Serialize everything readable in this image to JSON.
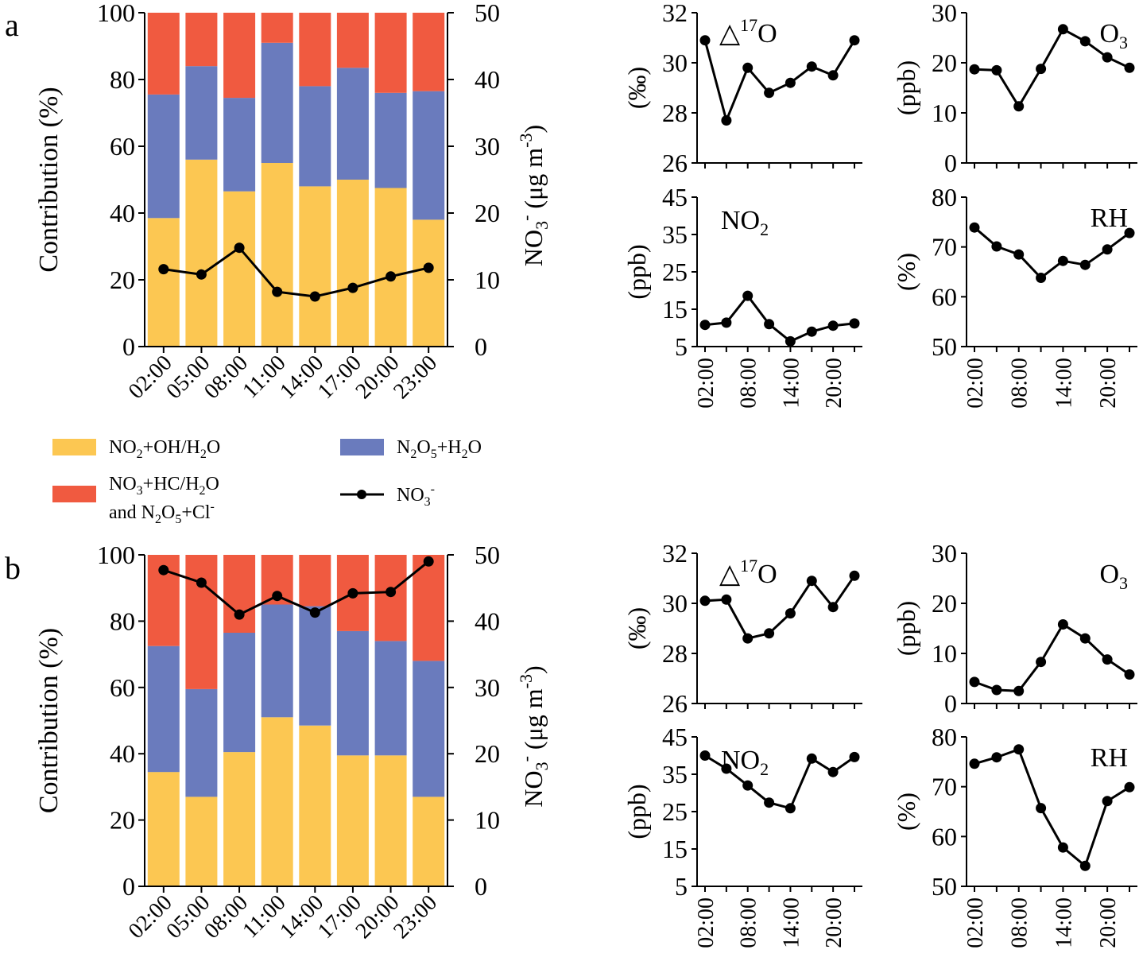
{
  "colors": {
    "oh": "#FCC752",
    "n2o5": "#6A7BBD",
    "no3hc": "#F05A40",
    "line": "#000000"
  },
  "legend": {
    "oh_main": "NO",
    "oh_sub": "2",
    "oh_rest": "+OH/H",
    "oh_sub2": "2",
    "oh_end": "O",
    "n2o5_pre": "N",
    "n2o5_sub1": "2",
    "n2o5_mid": "O",
    "n2o5_sub2": "5",
    "n2o5_rest": "+H",
    "n2o5_sub3": "2",
    "n2o5_end": "O",
    "no3hc_line1_pre": "NO",
    "no3hc_line1_sub": "3",
    "no3hc_line1_mid": "+HC/H",
    "no3hc_line1_sub2": "2",
    "no3hc_line1_end": "O",
    "no3hc_line2_pre": "and N",
    "no3hc_line2_sub1": "2",
    "no3hc_line2_mid": "O",
    "no3hc_line2_sub2": "5",
    "no3hc_line2_mid2": "+Cl",
    "no3hc_line2_sup": "-",
    "nitrate_pre": "NO",
    "nitrate_sub": "3",
    "nitrate_sup": "-"
  },
  "chart_data": [
    {
      "panel": "a",
      "type": "bar",
      "stacked": true,
      "categories": [
        "02:00",
        "05:00",
        "08:00",
        "11:00",
        "14:00",
        "17:00",
        "20:00",
        "23:00"
      ],
      "series": [
        {
          "name": "NO2+OH/H2O",
          "values": [
            38.5,
            56,
            46.5,
            55,
            48,
            50,
            47.5,
            38
          ]
        },
        {
          "name": "N2O5+H2O",
          "values": [
            37,
            28,
            28,
            36,
            30,
            33.5,
            28.5,
            38.5
          ]
        },
        {
          "name": "NO3+HC/H2O and N2O5+Cl-",
          "values": [
            24.5,
            16,
            25.5,
            9,
            22,
            16.5,
            24,
            23.5
          ]
        }
      ],
      "line": {
        "name": "NO3-",
        "values": [
          11.6,
          10.8,
          14.8,
          8.2,
          7.5,
          8.8,
          10.5,
          11.8
        ]
      },
      "ylabel": "Contribution (%)",
      "ylim": [
        0,
        100
      ],
      "y2label_pre": "NO",
      "y2label_sub": "3",
      "y2label_sup": "-",
      "y2label_rest": " (μg m",
      "y2label_sup2": "-3",
      "y2label_end": ")",
      "y2lim": [
        0,
        50
      ],
      "yticks": [
        "0",
        "20",
        "40",
        "60",
        "80",
        "100"
      ],
      "y2ticks": [
        "0",
        "10",
        "20",
        "30",
        "40",
        "50"
      ],
      "small": [
        {
          "label": "△",
          "label_sup": "17",
          "label_end": "O",
          "ylabel": "(‰)",
          "ylim": [
            26,
            32
          ],
          "yticks": [
            "26",
            "28",
            "30",
            "32"
          ],
          "values": [
            30.9,
            27.7,
            29.8,
            28.8,
            29.2,
            29.85,
            29.5,
            30.9
          ]
        },
        {
          "label": "O",
          "label_sub": "3",
          "ylabel": "(ppb)",
          "ylim": [
            0,
            30
          ],
          "yticks": [
            "0",
            "10",
            "20",
            "30"
          ],
          "values": [
            18.7,
            18.5,
            11.3,
            18.8,
            26.7,
            24.3,
            21.1,
            19.0
          ]
        },
        {
          "label": "NO",
          "label_sub": "2",
          "ylabel": "(ppb)",
          "ylim": [
            5,
            45
          ],
          "yticks": [
            "5",
            "15",
            "25",
            "35",
            "45"
          ],
          "values": [
            10.8,
            11.4,
            18.6,
            11.0,
            6.4,
            9.0,
            10.6,
            11.2
          ]
        },
        {
          "label": "RH",
          "ylabel": "(%)",
          "ylim": [
            50,
            80
          ],
          "yticks": [
            "50",
            "60",
            "70",
            "80"
          ],
          "values": [
            73.9,
            70.1,
            68.5,
            63.8,
            67.2,
            66.4,
            69.5,
            72.8
          ]
        }
      ],
      "small_xticks": [
        "02:00",
        "08:00",
        "14:00",
        "20:00"
      ]
    },
    {
      "panel": "b",
      "type": "bar",
      "stacked": true,
      "categories": [
        "02:00",
        "05:00",
        "08:00",
        "11:00",
        "14:00",
        "17:00",
        "20:00",
        "23:00"
      ],
      "series": [
        {
          "name": "NO2+OH/H2O",
          "values": [
            34.5,
            27,
            40.5,
            51,
            48.5,
            39.5,
            39.5,
            27
          ]
        },
        {
          "name": "N2O5+H2O",
          "values": [
            38,
            32.5,
            36,
            34,
            36,
            37.5,
            34.5,
            41
          ]
        },
        {
          "name": "NO3+HC/H2O and N2O5+Cl-",
          "values": [
            27.5,
            40.5,
            23.5,
            15,
            15.5,
            23,
            26,
            32
          ]
        }
      ],
      "line": {
        "name": "NO3-",
        "values": [
          47.7,
          45.8,
          41.0,
          43.8,
          41.3,
          44.2,
          44.4,
          49.0
        ]
      },
      "ylabel": "Contribution (%)",
      "ylim": [
        0,
        100
      ],
      "y2label_pre": "NO",
      "y2label_sub": "3",
      "y2label_sup": "-",
      "y2label_rest": " (μg m",
      "y2label_sup2": "-3",
      "y2label_end": ")",
      "y2lim": [
        0,
        50
      ],
      "yticks": [
        "0",
        "20",
        "40",
        "60",
        "80",
        "100"
      ],
      "y2ticks": [
        "0",
        "10",
        "20",
        "30",
        "40",
        "50"
      ],
      "small": [
        {
          "label": "△",
          "label_sup": "17",
          "label_end": "O",
          "ylabel": "(‰)",
          "ylim": [
            26,
            32
          ],
          "yticks": [
            "26",
            "28",
            "30",
            "32"
          ],
          "values": [
            30.1,
            30.15,
            28.6,
            28.8,
            29.6,
            30.9,
            29.85,
            31.1
          ]
        },
        {
          "label": "O",
          "label_sub": "3",
          "ylabel": "(ppb)",
          "ylim": [
            0,
            30
          ],
          "yticks": [
            "0",
            "10",
            "20",
            "30"
          ],
          "values": [
            4.3,
            2.7,
            2.5,
            8.3,
            15.8,
            13.0,
            8.8,
            5.8
          ]
        },
        {
          "label": "NO",
          "label_sub": "2",
          "ylabel": "(ppb)",
          "ylim": [
            5,
            45
          ],
          "yticks": [
            "5",
            "15",
            "25",
            "35",
            "45"
          ],
          "values": [
            40.0,
            36.5,
            32.0,
            27.4,
            25.9,
            39.2,
            35.6,
            39.6
          ]
        },
        {
          "label": "RH",
          "ylabel": "(%)",
          "ylim": [
            50,
            80
          ],
          "yticks": [
            "50",
            "60",
            "70",
            "80"
          ],
          "values": [
            74.6,
            75.9,
            77.5,
            65.7,
            57.8,
            54.1,
            67.1,
            69.9
          ]
        }
      ],
      "small_xticks": [
        "02:00",
        "08:00",
        "14:00",
        "20:00"
      ]
    }
  ]
}
